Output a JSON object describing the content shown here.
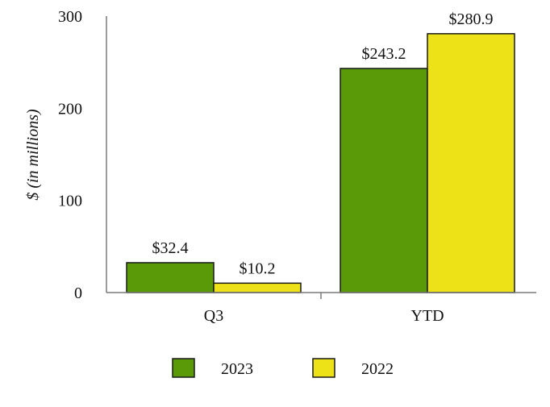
{
  "chart_data": {
    "type": "bar",
    "categories": [
      "Q3",
      "YTD"
    ],
    "series": [
      {
        "name": "2023",
        "color": "#5a9a08",
        "values": [
          32.4,
          243.2
        ],
        "labels": [
          "$32.4",
          "$243.2"
        ]
      },
      {
        "name": "2022",
        "color": "#ede217",
        "values": [
          10.2,
          280.9
        ],
        "labels": [
          "$10.2",
          "$280.9"
        ]
      }
    ],
    "ylabel": "$ (in millions)",
    "ylim": [
      0,
      300
    ],
    "yticks": [
      0,
      100,
      200,
      300
    ],
    "ytick_labels": [
      "0",
      "100",
      "200",
      "300"
    ],
    "grid": false,
    "legend_position": "bottom"
  }
}
